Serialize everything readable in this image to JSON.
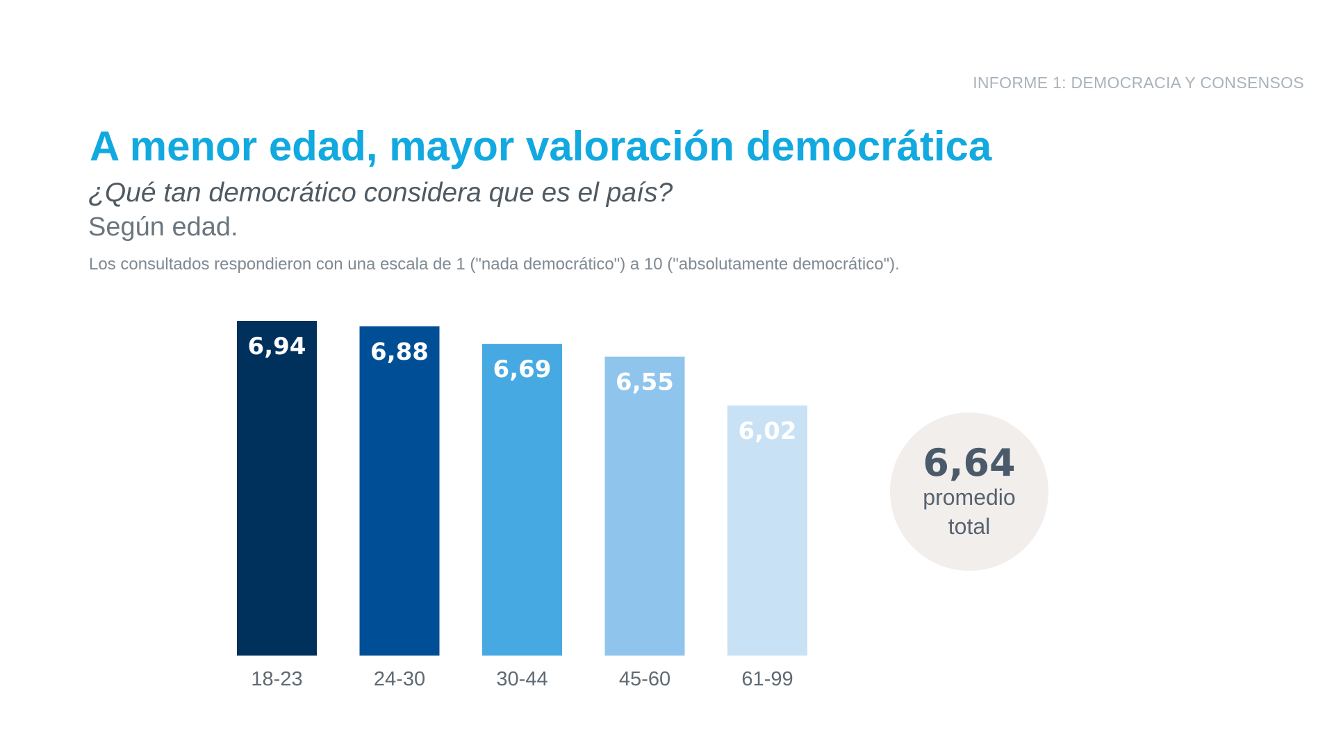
{
  "header": {
    "report_tag": "INFORME 1: DEMOCRACIA Y CONSENSOS"
  },
  "title": "A menor edad, mayor valoración democrática",
  "question": "¿Qué tan democrático considera que es el país?",
  "segment": "Según edad.",
  "note": "Los consultados respondieron con una escala de 1 (\"nada democrático\") a 10 (\"absolutamente democrático\").",
  "chart_data": {
    "type": "bar",
    "title": "A menor edad, mayor valoración democrática",
    "xlabel": "",
    "ylabel": "",
    "categories": [
      "18-23",
      "24-30",
      "30-44",
      "45-60",
      "61-99"
    ],
    "values": [
      6.94,
      6.88,
      6.69,
      6.55,
      6.02
    ],
    "value_labels": [
      "6,94",
      "6,88",
      "6,69",
      "6,55",
      "6,02"
    ],
    "colors": [
      "#00305c",
      "#004f96",
      "#47a9e1",
      "#8fc5ec",
      "#c9e1f5"
    ],
    "ylim": [
      0,
      6.94
    ],
    "grid": false,
    "legend": "none"
  },
  "average": {
    "value": "6,64",
    "label": "promedio total"
  }
}
